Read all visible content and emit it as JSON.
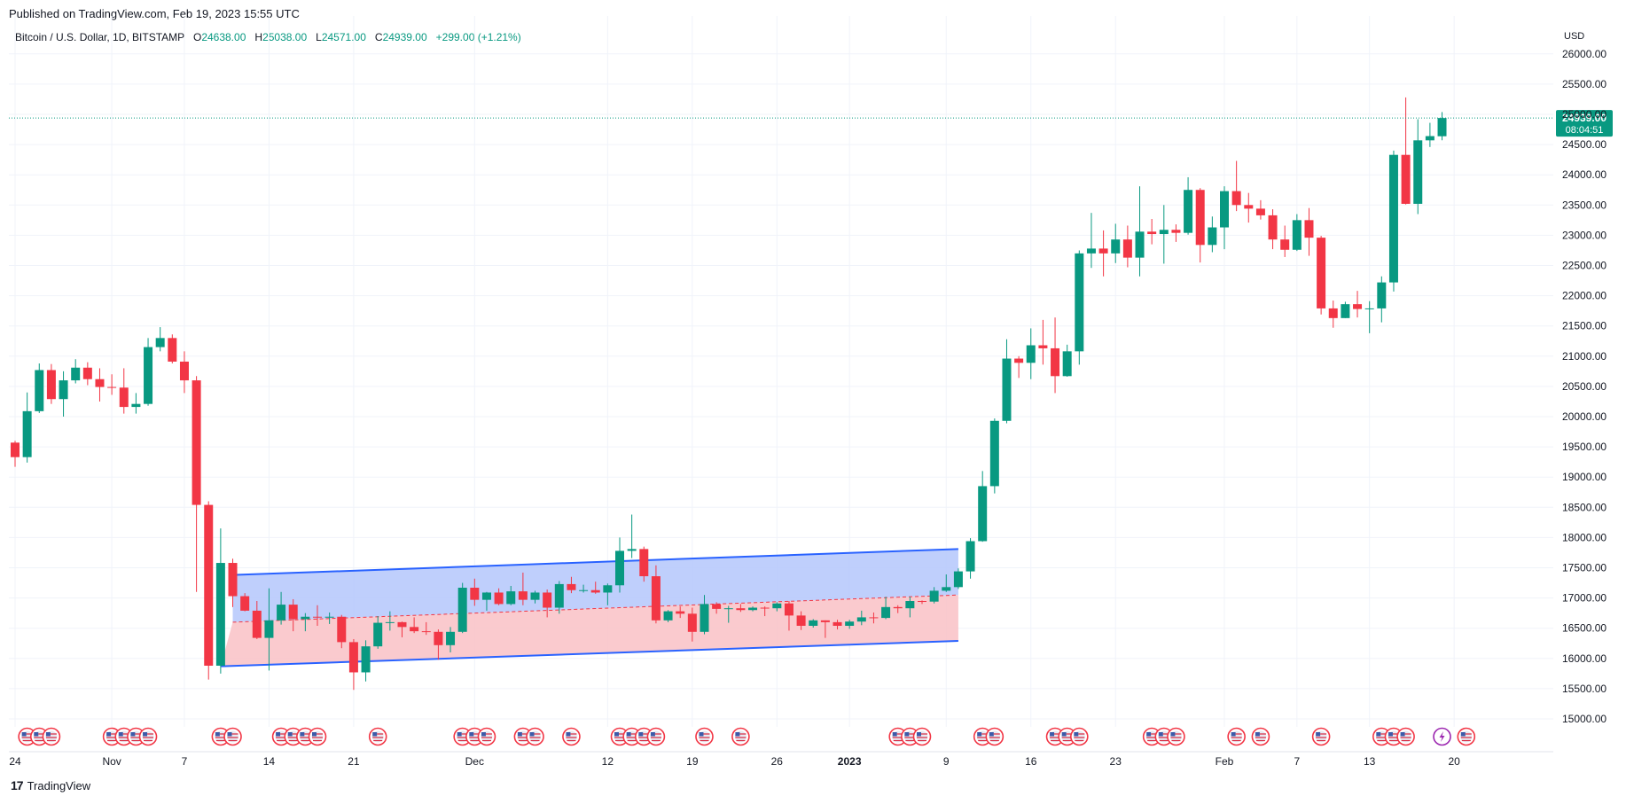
{
  "header": {
    "published": "Published on TradingView.com, Feb 19, 2023 15:55 UTC"
  },
  "legend": {
    "symbol": "Bitcoin / U.S. Dollar, 1D, BITSTAMP",
    "o_label": "O",
    "o": "24638.00",
    "h_label": "H",
    "h": "25038.00",
    "l_label": "L",
    "l": "24571.00",
    "c_label": "C",
    "c": "24939.00",
    "change": "+299.00 (+1.21%)"
  },
  "footer": {
    "brand_mark": "17",
    "brand": "TradingView"
  },
  "colors": {
    "up": "#089981",
    "down": "#f23645",
    "channel_line": "#2962ff",
    "upper_fill": "#b4c7fb",
    "lower_fill": "#f9c1c6"
  },
  "chart_data": {
    "type": "candlestick",
    "currency_label": "USD",
    "price_tag": "24939.00",
    "countdown": "08:04:51",
    "ylim": [
      15000,
      26000
    ],
    "y_ticks": [
      "26000.00",
      "25500.00",
      "25000.00",
      "24500.00",
      "24000.00",
      "23500.00",
      "23000.00",
      "22500.00",
      "22000.00",
      "21500.00",
      "21000.00",
      "20500.00",
      "20000.00",
      "19500.00",
      "19000.00",
      "18500.00",
      "18000.00",
      "17500.00",
      "17000.00",
      "16500.00",
      "16000.00",
      "15500.00",
      "15000.00"
    ],
    "x_ticks": [
      {
        "label": "24",
        "date": "2022-10-24"
      },
      {
        "label": "Nov",
        "date": "2022-11-01"
      },
      {
        "label": "7",
        "date": "2022-11-07"
      },
      {
        "label": "14",
        "date": "2022-11-14"
      },
      {
        "label": "21",
        "date": "2022-11-21"
      },
      {
        "label": "Dec",
        "date": "2022-12-01"
      },
      {
        "label": "12",
        "date": "2022-12-12"
      },
      {
        "label": "19",
        "date": "2022-12-19"
      },
      {
        "label": "26",
        "date": "2022-12-26"
      },
      {
        "label": "2023",
        "date": "2023-01-01"
      },
      {
        "label": "9",
        "date": "2023-01-09"
      },
      {
        "label": "16",
        "date": "2023-01-16"
      },
      {
        "label": "23",
        "date": "2023-01-23"
      },
      {
        "label": "Feb",
        "date": "2023-02-01"
      },
      {
        "label": "7",
        "date": "2023-02-07"
      },
      {
        "label": "13",
        "date": "2023-02-13"
      },
      {
        "label": "20",
        "date": "2023-02-20"
      }
    ],
    "candles": [
      {
        "date": "2022-10-24",
        "o": 19570,
        "h": 19600,
        "l": 19170,
        "c": 19330
      },
      {
        "date": "2022-10-25",
        "o": 19330,
        "h": 20400,
        "l": 19240,
        "c": 20090
      },
      {
        "date": "2022-10-26",
        "o": 20090,
        "h": 20880,
        "l": 20060,
        "c": 20770
      },
      {
        "date": "2022-10-27",
        "o": 20770,
        "h": 20870,
        "l": 20210,
        "c": 20290
      },
      {
        "date": "2022-10-28",
        "o": 20290,
        "h": 20750,
        "l": 20000,
        "c": 20600
      },
      {
        "date": "2022-10-29",
        "o": 20600,
        "h": 20950,
        "l": 20550,
        "c": 20810
      },
      {
        "date": "2022-10-30",
        "o": 20810,
        "h": 20900,
        "l": 20520,
        "c": 20620
      },
      {
        "date": "2022-10-31",
        "o": 20620,
        "h": 20800,
        "l": 20250,
        "c": 20490
      },
      {
        "date": "2022-11-01",
        "o": 20490,
        "h": 20700,
        "l": 20360,
        "c": 20480
      },
      {
        "date": "2022-11-02",
        "o": 20480,
        "h": 20800,
        "l": 20050,
        "c": 20160
      },
      {
        "date": "2022-11-03",
        "o": 20160,
        "h": 20390,
        "l": 20050,
        "c": 20210
      },
      {
        "date": "2022-11-04",
        "o": 20210,
        "h": 21300,
        "l": 20180,
        "c": 21150
      },
      {
        "date": "2022-11-05",
        "o": 21150,
        "h": 21480,
        "l": 21080,
        "c": 21300
      },
      {
        "date": "2022-11-06",
        "o": 21300,
        "h": 21360,
        "l": 20880,
        "c": 20910
      },
      {
        "date": "2022-11-07",
        "o": 20910,
        "h": 21080,
        "l": 20390,
        "c": 20600
      },
      {
        "date": "2022-11-08",
        "o": 20600,
        "h": 20670,
        "l": 17100,
        "c": 18540
      },
      {
        "date": "2022-11-09",
        "o": 18540,
        "h": 18600,
        "l": 15650,
        "c": 15880
      },
      {
        "date": "2022-11-10",
        "o": 15880,
        "h": 18150,
        "l": 15750,
        "c": 17580
      },
      {
        "date": "2022-11-11",
        "o": 17580,
        "h": 17650,
        "l": 16850,
        "c": 17030
      },
      {
        "date": "2022-11-12",
        "o": 17030,
        "h": 17080,
        "l": 16780,
        "c": 16790
      },
      {
        "date": "2022-11-13",
        "o": 16790,
        "h": 16950,
        "l": 16320,
        "c": 16340
      },
      {
        "date": "2022-11-14",
        "o": 16340,
        "h": 17160,
        "l": 15800,
        "c": 16630
      },
      {
        "date": "2022-11-15",
        "o": 16630,
        "h": 17100,
        "l": 16560,
        "c": 16890
      },
      {
        "date": "2022-11-16",
        "o": 16890,
        "h": 16980,
        "l": 16450,
        "c": 16650
      },
      {
        "date": "2022-11-17",
        "o": 16650,
        "h": 16750,
        "l": 16450,
        "c": 16690
      },
      {
        "date": "2022-11-18",
        "o": 16690,
        "h": 16880,
        "l": 16540,
        "c": 16680
      },
      {
        "date": "2022-11-19",
        "o": 16680,
        "h": 16760,
        "l": 16570,
        "c": 16690
      },
      {
        "date": "2022-11-20",
        "o": 16690,
        "h": 16720,
        "l": 16170,
        "c": 16270
      },
      {
        "date": "2022-11-21",
        "o": 16270,
        "h": 16320,
        "l": 15480,
        "c": 15770
      },
      {
        "date": "2022-11-22",
        "o": 15770,
        "h": 16300,
        "l": 15620,
        "c": 16200
      },
      {
        "date": "2022-11-23",
        "o": 16200,
        "h": 16700,
        "l": 16160,
        "c": 16590
      },
      {
        "date": "2022-11-24",
        "o": 16590,
        "h": 16780,
        "l": 16460,
        "c": 16600
      },
      {
        "date": "2022-11-25",
        "o": 16600,
        "h": 16610,
        "l": 16350,
        "c": 16520
      },
      {
        "date": "2022-11-26",
        "o": 16520,
        "h": 16680,
        "l": 16420,
        "c": 16450
      },
      {
        "date": "2022-11-27",
        "o": 16450,
        "h": 16600,
        "l": 16390,
        "c": 16440
      },
      {
        "date": "2022-11-28",
        "o": 16440,
        "h": 16480,
        "l": 15980,
        "c": 16220
      },
      {
        "date": "2022-11-29",
        "o": 16220,
        "h": 16520,
        "l": 16100,
        "c": 16440
      },
      {
        "date": "2022-11-30",
        "o": 16440,
        "h": 17250,
        "l": 16420,
        "c": 17170
      },
      {
        "date": "2022-12-01",
        "o": 17170,
        "h": 17320,
        "l": 16870,
        "c": 16970
      },
      {
        "date": "2022-12-02",
        "o": 16970,
        "h": 17100,
        "l": 16790,
        "c": 17090
      },
      {
        "date": "2022-12-03",
        "o": 17090,
        "h": 17160,
        "l": 16880,
        "c": 16900
      },
      {
        "date": "2022-12-04",
        "o": 16900,
        "h": 17200,
        "l": 16880,
        "c": 17110
      },
      {
        "date": "2022-12-05",
        "o": 17110,
        "h": 17420,
        "l": 16880,
        "c": 16970
      },
      {
        "date": "2022-12-06",
        "o": 16970,
        "h": 17120,
        "l": 16910,
        "c": 17090
      },
      {
        "date": "2022-12-07",
        "o": 17090,
        "h": 17140,
        "l": 16680,
        "c": 16840
      },
      {
        "date": "2022-12-08",
        "o": 16840,
        "h": 17280,
        "l": 16740,
        "c": 17230
      },
      {
        "date": "2022-12-09",
        "o": 17230,
        "h": 17350,
        "l": 17080,
        "c": 17130
      },
      {
        "date": "2022-12-10",
        "o": 17130,
        "h": 17220,
        "l": 17090,
        "c": 17130
      },
      {
        "date": "2022-12-11",
        "o": 17130,
        "h": 17270,
        "l": 17070,
        "c": 17090
      },
      {
        "date": "2022-12-12",
        "o": 17090,
        "h": 17240,
        "l": 16880,
        "c": 17210
      },
      {
        "date": "2022-12-13",
        "o": 17210,
        "h": 18000,
        "l": 17090,
        "c": 17780
      },
      {
        "date": "2022-12-14",
        "o": 17780,
        "h": 18380,
        "l": 17660,
        "c": 17810
      },
      {
        "date": "2022-12-15",
        "o": 17810,
        "h": 17850,
        "l": 17270,
        "c": 17360
      },
      {
        "date": "2022-12-16",
        "o": 17360,
        "h": 17540,
        "l": 16580,
        "c": 16630
      },
      {
        "date": "2022-12-17",
        "o": 16630,
        "h": 16800,
        "l": 16600,
        "c": 16780
      },
      {
        "date": "2022-12-18",
        "o": 16780,
        "h": 16860,
        "l": 16670,
        "c": 16740
      },
      {
        "date": "2022-12-19",
        "o": 16740,
        "h": 16840,
        "l": 16280,
        "c": 16440
      },
      {
        "date": "2022-12-20",
        "o": 16440,
        "h": 17050,
        "l": 16400,
        "c": 16900
      },
      {
        "date": "2022-12-21",
        "o": 16900,
        "h": 16930,
        "l": 16740,
        "c": 16820
      },
      {
        "date": "2022-12-22",
        "o": 16820,
        "h": 16870,
        "l": 16590,
        "c": 16830
      },
      {
        "date": "2022-12-23",
        "o": 16830,
        "h": 16900,
        "l": 16770,
        "c": 16800
      },
      {
        "date": "2022-12-24",
        "o": 16800,
        "h": 16860,
        "l": 16780,
        "c": 16840
      },
      {
        "date": "2022-12-25",
        "o": 16840,
        "h": 16860,
        "l": 16700,
        "c": 16830
      },
      {
        "date": "2022-12-26",
        "o": 16830,
        "h": 16930,
        "l": 16780,
        "c": 16910
      },
      {
        "date": "2022-12-27",
        "o": 16910,
        "h": 16950,
        "l": 16460,
        "c": 16710
      },
      {
        "date": "2022-12-28",
        "o": 16710,
        "h": 16780,
        "l": 16470,
        "c": 16540
      },
      {
        "date": "2022-12-29",
        "o": 16540,
        "h": 16650,
        "l": 16510,
        "c": 16630
      },
      {
        "date": "2022-12-30",
        "o": 16630,
        "h": 16630,
        "l": 16340,
        "c": 16600
      },
      {
        "date": "2022-12-31",
        "o": 16600,
        "h": 16640,
        "l": 16480,
        "c": 16540
      },
      {
        "date": "2023-01-01",
        "o": 16540,
        "h": 16640,
        "l": 16490,
        "c": 16610
      },
      {
        "date": "2023-01-02",
        "o": 16610,
        "h": 16790,
        "l": 16550,
        "c": 16680
      },
      {
        "date": "2023-01-03",
        "o": 16680,
        "h": 16760,
        "l": 16580,
        "c": 16670
      },
      {
        "date": "2023-01-04",
        "o": 16670,
        "h": 17020,
        "l": 16650,
        "c": 16850
      },
      {
        "date": "2023-01-05",
        "o": 16850,
        "h": 16880,
        "l": 16750,
        "c": 16830
      },
      {
        "date": "2023-01-06",
        "o": 16830,
        "h": 17020,
        "l": 16680,
        "c": 16950
      },
      {
        "date": "2023-01-07",
        "o": 16950,
        "h": 16960,
        "l": 16900,
        "c": 16940
      },
      {
        "date": "2023-01-08",
        "o": 16940,
        "h": 17180,
        "l": 16910,
        "c": 17120
      },
      {
        "date": "2023-01-09",
        "o": 17120,
        "h": 17390,
        "l": 17100,
        "c": 17180
      },
      {
        "date": "2023-01-10",
        "o": 17180,
        "h": 17490,
        "l": 17150,
        "c": 17440
      },
      {
        "date": "2023-01-11",
        "o": 17440,
        "h": 17990,
        "l": 17320,
        "c": 17940
      },
      {
        "date": "2023-01-12",
        "o": 17940,
        "h": 19100,
        "l": 17930,
        "c": 18850
      },
      {
        "date": "2023-01-13",
        "o": 18850,
        "h": 19970,
        "l": 18730,
        "c": 19930
      },
      {
        "date": "2023-01-14",
        "o": 19930,
        "h": 21280,
        "l": 19890,
        "c": 20960
      },
      {
        "date": "2023-01-15",
        "o": 20960,
        "h": 21000,
        "l": 20640,
        "c": 20890
      },
      {
        "date": "2023-01-16",
        "o": 20890,
        "h": 21460,
        "l": 20620,
        "c": 21180
      },
      {
        "date": "2023-01-17",
        "o": 21180,
        "h": 21600,
        "l": 20860,
        "c": 21130
      },
      {
        "date": "2023-01-18",
        "o": 21130,
        "h": 21640,
        "l": 20390,
        "c": 20670
      },
      {
        "date": "2023-01-19",
        "o": 20670,
        "h": 21190,
        "l": 20660,
        "c": 21080
      },
      {
        "date": "2023-01-20",
        "o": 21080,
        "h": 22750,
        "l": 20860,
        "c": 22700
      },
      {
        "date": "2023-01-21",
        "o": 22700,
        "h": 23370,
        "l": 22460,
        "c": 22780
      },
      {
        "date": "2023-01-22",
        "o": 22780,
        "h": 23080,
        "l": 22320,
        "c": 22700
      },
      {
        "date": "2023-01-23",
        "o": 22700,
        "h": 23190,
        "l": 22540,
        "c": 22930
      },
      {
        "date": "2023-01-24",
        "o": 22930,
        "h": 23160,
        "l": 22470,
        "c": 22630
      },
      {
        "date": "2023-01-25",
        "o": 22630,
        "h": 23810,
        "l": 22320,
        "c": 23060
      },
      {
        "date": "2023-01-26",
        "o": 23060,
        "h": 23270,
        "l": 22850,
        "c": 23020
      },
      {
        "date": "2023-01-27",
        "o": 23020,
        "h": 23500,
        "l": 22530,
        "c": 23090
      },
      {
        "date": "2023-01-28",
        "o": 23090,
        "h": 23180,
        "l": 22890,
        "c": 23040
      },
      {
        "date": "2023-01-29",
        "o": 23040,
        "h": 23960,
        "l": 23010,
        "c": 23750
      },
      {
        "date": "2023-01-30",
        "o": 23750,
        "h": 23780,
        "l": 22550,
        "c": 22840
      },
      {
        "date": "2023-01-31",
        "o": 22840,
        "h": 23310,
        "l": 22720,
        "c": 23130
      },
      {
        "date": "2023-02-01",
        "o": 23130,
        "h": 23810,
        "l": 22770,
        "c": 23730
      },
      {
        "date": "2023-02-02",
        "o": 23730,
        "h": 24230,
        "l": 23400,
        "c": 23500
      },
      {
        "date": "2023-02-03",
        "o": 23500,
        "h": 23700,
        "l": 23210,
        "c": 23440
      },
      {
        "date": "2023-02-04",
        "o": 23440,
        "h": 23580,
        "l": 23260,
        "c": 23330
      },
      {
        "date": "2023-02-05",
        "o": 23330,
        "h": 23430,
        "l": 22770,
        "c": 22930
      },
      {
        "date": "2023-02-06",
        "o": 22930,
        "h": 23160,
        "l": 22640,
        "c": 22760
      },
      {
        "date": "2023-02-07",
        "o": 22760,
        "h": 23350,
        "l": 22740,
        "c": 23250
      },
      {
        "date": "2023-02-08",
        "o": 23250,
        "h": 23450,
        "l": 22660,
        "c": 22960
      },
      {
        "date": "2023-02-09",
        "o": 22960,
        "h": 22990,
        "l": 21690,
        "c": 21790
      },
      {
        "date": "2023-02-10",
        "o": 21790,
        "h": 21920,
        "l": 21470,
        "c": 21630
      },
      {
        "date": "2023-02-11",
        "o": 21630,
        "h": 21900,
        "l": 21630,
        "c": 21860
      },
      {
        "date": "2023-02-12",
        "o": 21860,
        "h": 22080,
        "l": 21640,
        "c": 21780
      },
      {
        "date": "2023-02-13",
        "o": 21780,
        "h": 21910,
        "l": 21380,
        "c": 21790
      },
      {
        "date": "2023-02-14",
        "o": 21790,
        "h": 22320,
        "l": 21560,
        "c": 22220
      },
      {
        "date": "2023-02-15",
        "o": 22220,
        "h": 24400,
        "l": 22070,
        "c": 24330
      },
      {
        "date": "2023-02-16",
        "o": 24330,
        "h": 25280,
        "l": 23510,
        "c": 23520
      },
      {
        "date": "2023-02-17",
        "o": 23520,
        "h": 24920,
        "l": 23350,
        "c": 24570
      },
      {
        "date": "2023-02-18",
        "o": 24570,
        "h": 24860,
        "l": 24460,
        "c": 24640
      },
      {
        "date": "2023-02-19",
        "o": 24638,
        "h": 25038,
        "l": 24571,
        "c": 24939
      }
    ],
    "channel": {
      "upper": [
        {
          "date": "2022-11-11",
          "price": 17380
        },
        {
          "date": "2023-01-10",
          "price": 17810
        }
      ],
      "mid": [
        {
          "date": "2022-11-11",
          "price": 16600
        },
        {
          "date": "2023-01-10",
          "price": 17050
        }
      ],
      "lower": [
        {
          "date": "2022-11-10",
          "price": 15870
        },
        {
          "date": "2023-01-10",
          "price": 16290
        }
      ]
    },
    "event_markers": [
      "2022-10-25",
      "2022-10-26",
      "2022-10-27",
      "2022-11-01",
      "2022-11-02",
      "2022-11-03",
      "2022-11-04",
      "2022-11-10",
      "2022-11-11",
      "2022-11-15",
      "2022-11-16",
      "2022-11-17",
      "2022-11-18",
      "2022-11-23",
      "2022-11-30",
      "2022-12-01",
      "2022-12-02",
      "2022-12-05",
      "2022-12-06",
      "2022-12-09",
      "2022-12-13",
      "2022-12-14",
      "2022-12-15",
      "2022-12-16",
      "2022-12-20",
      "2022-12-23",
      "2023-01-05",
      "2023-01-06",
      "2023-01-07",
      "2023-01-12",
      "2023-01-13",
      "2023-01-18",
      "2023-01-19",
      "2023-01-20",
      "2023-01-26",
      "2023-01-27",
      "2023-01-28",
      "2023-02-02",
      "2023-02-04",
      "2023-02-09",
      "2023-02-14",
      "2023-02-15",
      "2023-02-16",
      "2023-02-21"
    ],
    "special_marker": {
      "date": "2023-02-19",
      "icon": "lightning-icon"
    }
  }
}
